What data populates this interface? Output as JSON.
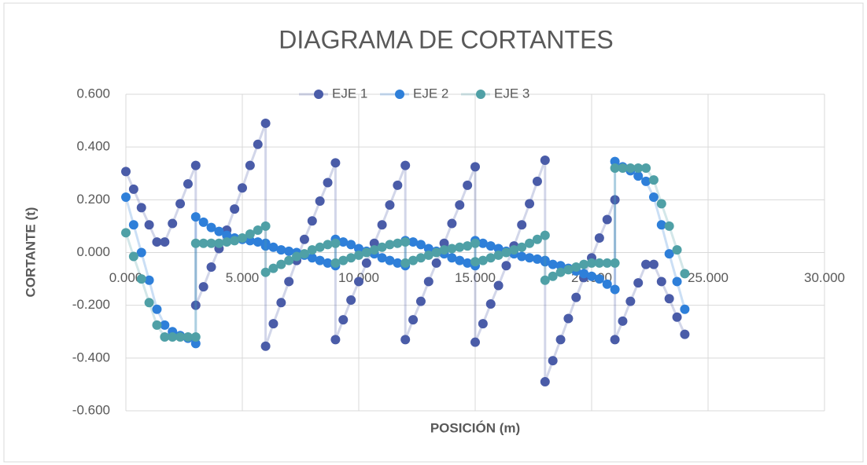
{
  "chart_data": {
    "type": "scatter",
    "title": "DIAGRAMA DE CORTANTES",
    "x_label": "POSICIÓN (m)",
    "y_label": "CORTANTE (t)",
    "xlim": [
      0,
      30
    ],
    "ylim": [
      -0.6,
      0.6
    ],
    "xticks": [
      {
        "value": 0,
        "label": "0.000"
      },
      {
        "value": 5,
        "label": "5.000"
      },
      {
        "value": 10,
        "label": "10.000"
      },
      {
        "value": 15,
        "label": "15.000"
      },
      {
        "value": 20,
        "label": "20.000"
      },
      {
        "value": 25,
        "label": "25.000"
      },
      {
        "value": 30,
        "label": "30.000"
      }
    ],
    "yticks": [
      {
        "value": -0.6,
        "label": "-0.600"
      },
      {
        "value": -0.4,
        "label": "-0.400"
      },
      {
        "value": -0.2,
        "label": "-0.200"
      },
      {
        "value": 0,
        "label": "0.000"
      },
      {
        "value": 0.2,
        "label": "0.200"
      },
      {
        "value": 0.4,
        "label": "0.400"
      },
      {
        "value": 0.6,
        "label": "0.600"
      }
    ],
    "grid": true,
    "legend": "top",
    "x": [
      0,
      0.333,
      0.667,
      1,
      1.333,
      1.667,
      2,
      2.333,
      2.667,
      3,
      3,
      3.333,
      3.667,
      4,
      4.333,
      4.667,
      5,
      5.333,
      5.667,
      6,
      6,
      6.333,
      6.667,
      7,
      7.333,
      7.667,
      8,
      8.333,
      8.667,
      9,
      9,
      9.333,
      9.667,
      10,
      10.333,
      10.667,
      11,
      11.333,
      11.667,
      12,
      12,
      12.333,
      12.667,
      13,
      13.333,
      13.667,
      14,
      14.333,
      14.667,
      15,
      15,
      15.333,
      15.667,
      16,
      16.333,
      16.667,
      17,
      17.333,
      17.667,
      18,
      18,
      18.333,
      18.667,
      19,
      19.333,
      19.667,
      20,
      20.333,
      20.667,
      21,
      21,
      21.333,
      21.667,
      22,
      22.333,
      22.667,
      23,
      23.333,
      23.667,
      24
    ],
    "series": [
      {
        "name": "EJE 1",
        "color": "#4a5ca8",
        "values": [
          0.307,
          0.24,
          0.17,
          0.105,
          0.04,
          0.04,
          0.11,
          0.185,
          0.26,
          0.33,
          -0.2,
          -0.13,
          -0.055,
          0.015,
          0.085,
          0.165,
          0.245,
          0.33,
          0.41,
          0.49,
          -0.355,
          -0.27,
          -0.19,
          -0.11,
          -0.03,
          0.05,
          0.12,
          0.195,
          0.265,
          0.34,
          -0.33,
          -0.255,
          -0.18,
          -0.11,
          -0.04,
          0.035,
          0.105,
          0.18,
          0.255,
          0.33,
          -0.33,
          -0.255,
          -0.185,
          -0.11,
          -0.04,
          0.035,
          0.11,
          0.18,
          0.255,
          0.325,
          -0.34,
          -0.27,
          -0.195,
          -0.125,
          -0.05,
          0.025,
          0.105,
          0.185,
          0.27,
          0.35,
          -0.49,
          -0.41,
          -0.33,
          -0.25,
          -0.17,
          -0.095,
          -0.02,
          0.055,
          0.125,
          0.2,
          -0.33,
          -0.26,
          -0.185,
          -0.115,
          -0.045,
          -0.045,
          -0.11,
          -0.175,
          -0.245,
          -0.31
        ]
      },
      {
        "name": "EJE 2",
        "color": "#2e7fd9",
        "values": [
          0.21,
          0.105,
          0,
          -0.105,
          -0.215,
          -0.275,
          -0.3,
          -0.315,
          -0.325,
          -0.345,
          0.135,
          0.115,
          0.095,
          0.08,
          0.065,
          0.055,
          0.05,
          0.045,
          0.04,
          0.035,
          0.025,
          0.02,
          0.01,
          0.005,
          0,
          -0.01,
          -0.02,
          -0.03,
          -0.04,
          -0.05,
          0.05,
          0.04,
          0.03,
          0.015,
          0.005,
          -0.005,
          -0.02,
          -0.03,
          -0.04,
          -0.05,
          0.045,
          0.04,
          0.03,
          0.015,
          0.005,
          -0.005,
          -0.02,
          -0.03,
          -0.04,
          -0.05,
          0.045,
          0.035,
          0.025,
          0.015,
          0.005,
          -0.005,
          -0.015,
          -0.02,
          -0.025,
          -0.03,
          -0.035,
          -0.045,
          -0.05,
          -0.06,
          -0.07,
          -0.08,
          -0.09,
          -0.1,
          -0.12,
          -0.14,
          0.345,
          0.325,
          0.31,
          0.29,
          0.27,
          0.21,
          0.105,
          -0.005,
          -0.11,
          -0.215
        ]
      },
      {
        "name": "EJE 3",
        "color": "#4fa0a6",
        "values": [
          0.075,
          -0.015,
          -0.1,
          -0.19,
          -0.275,
          -0.32,
          -0.32,
          -0.32,
          -0.32,
          -0.32,
          0.035,
          0.035,
          0.035,
          0.035,
          0.04,
          0.045,
          0.055,
          0.07,
          0.085,
          0.1,
          -0.075,
          -0.06,
          -0.045,
          -0.03,
          -0.015,
          -0.005,
          0.01,
          0.02,
          0.03,
          0.035,
          -0.04,
          -0.03,
          -0.02,
          -0.01,
          0,
          0.01,
          0.02,
          0.03,
          0.035,
          0.04,
          -0.04,
          -0.03,
          -0.02,
          -0.01,
          0,
          0.01,
          0.015,
          0.02,
          0.025,
          0.035,
          -0.035,
          -0.03,
          -0.02,
          -0.01,
          0,
          0.01,
          0.02,
          0.035,
          0.05,
          0.065,
          -0.105,
          -0.09,
          -0.075,
          -0.065,
          -0.055,
          -0.045,
          -0.04,
          -0.04,
          -0.04,
          -0.04,
          0.32,
          0.32,
          0.32,
          0.32,
          0.32,
          0.275,
          0.185,
          0.1,
          0.01,
          -0.08
        ]
      }
    ]
  }
}
